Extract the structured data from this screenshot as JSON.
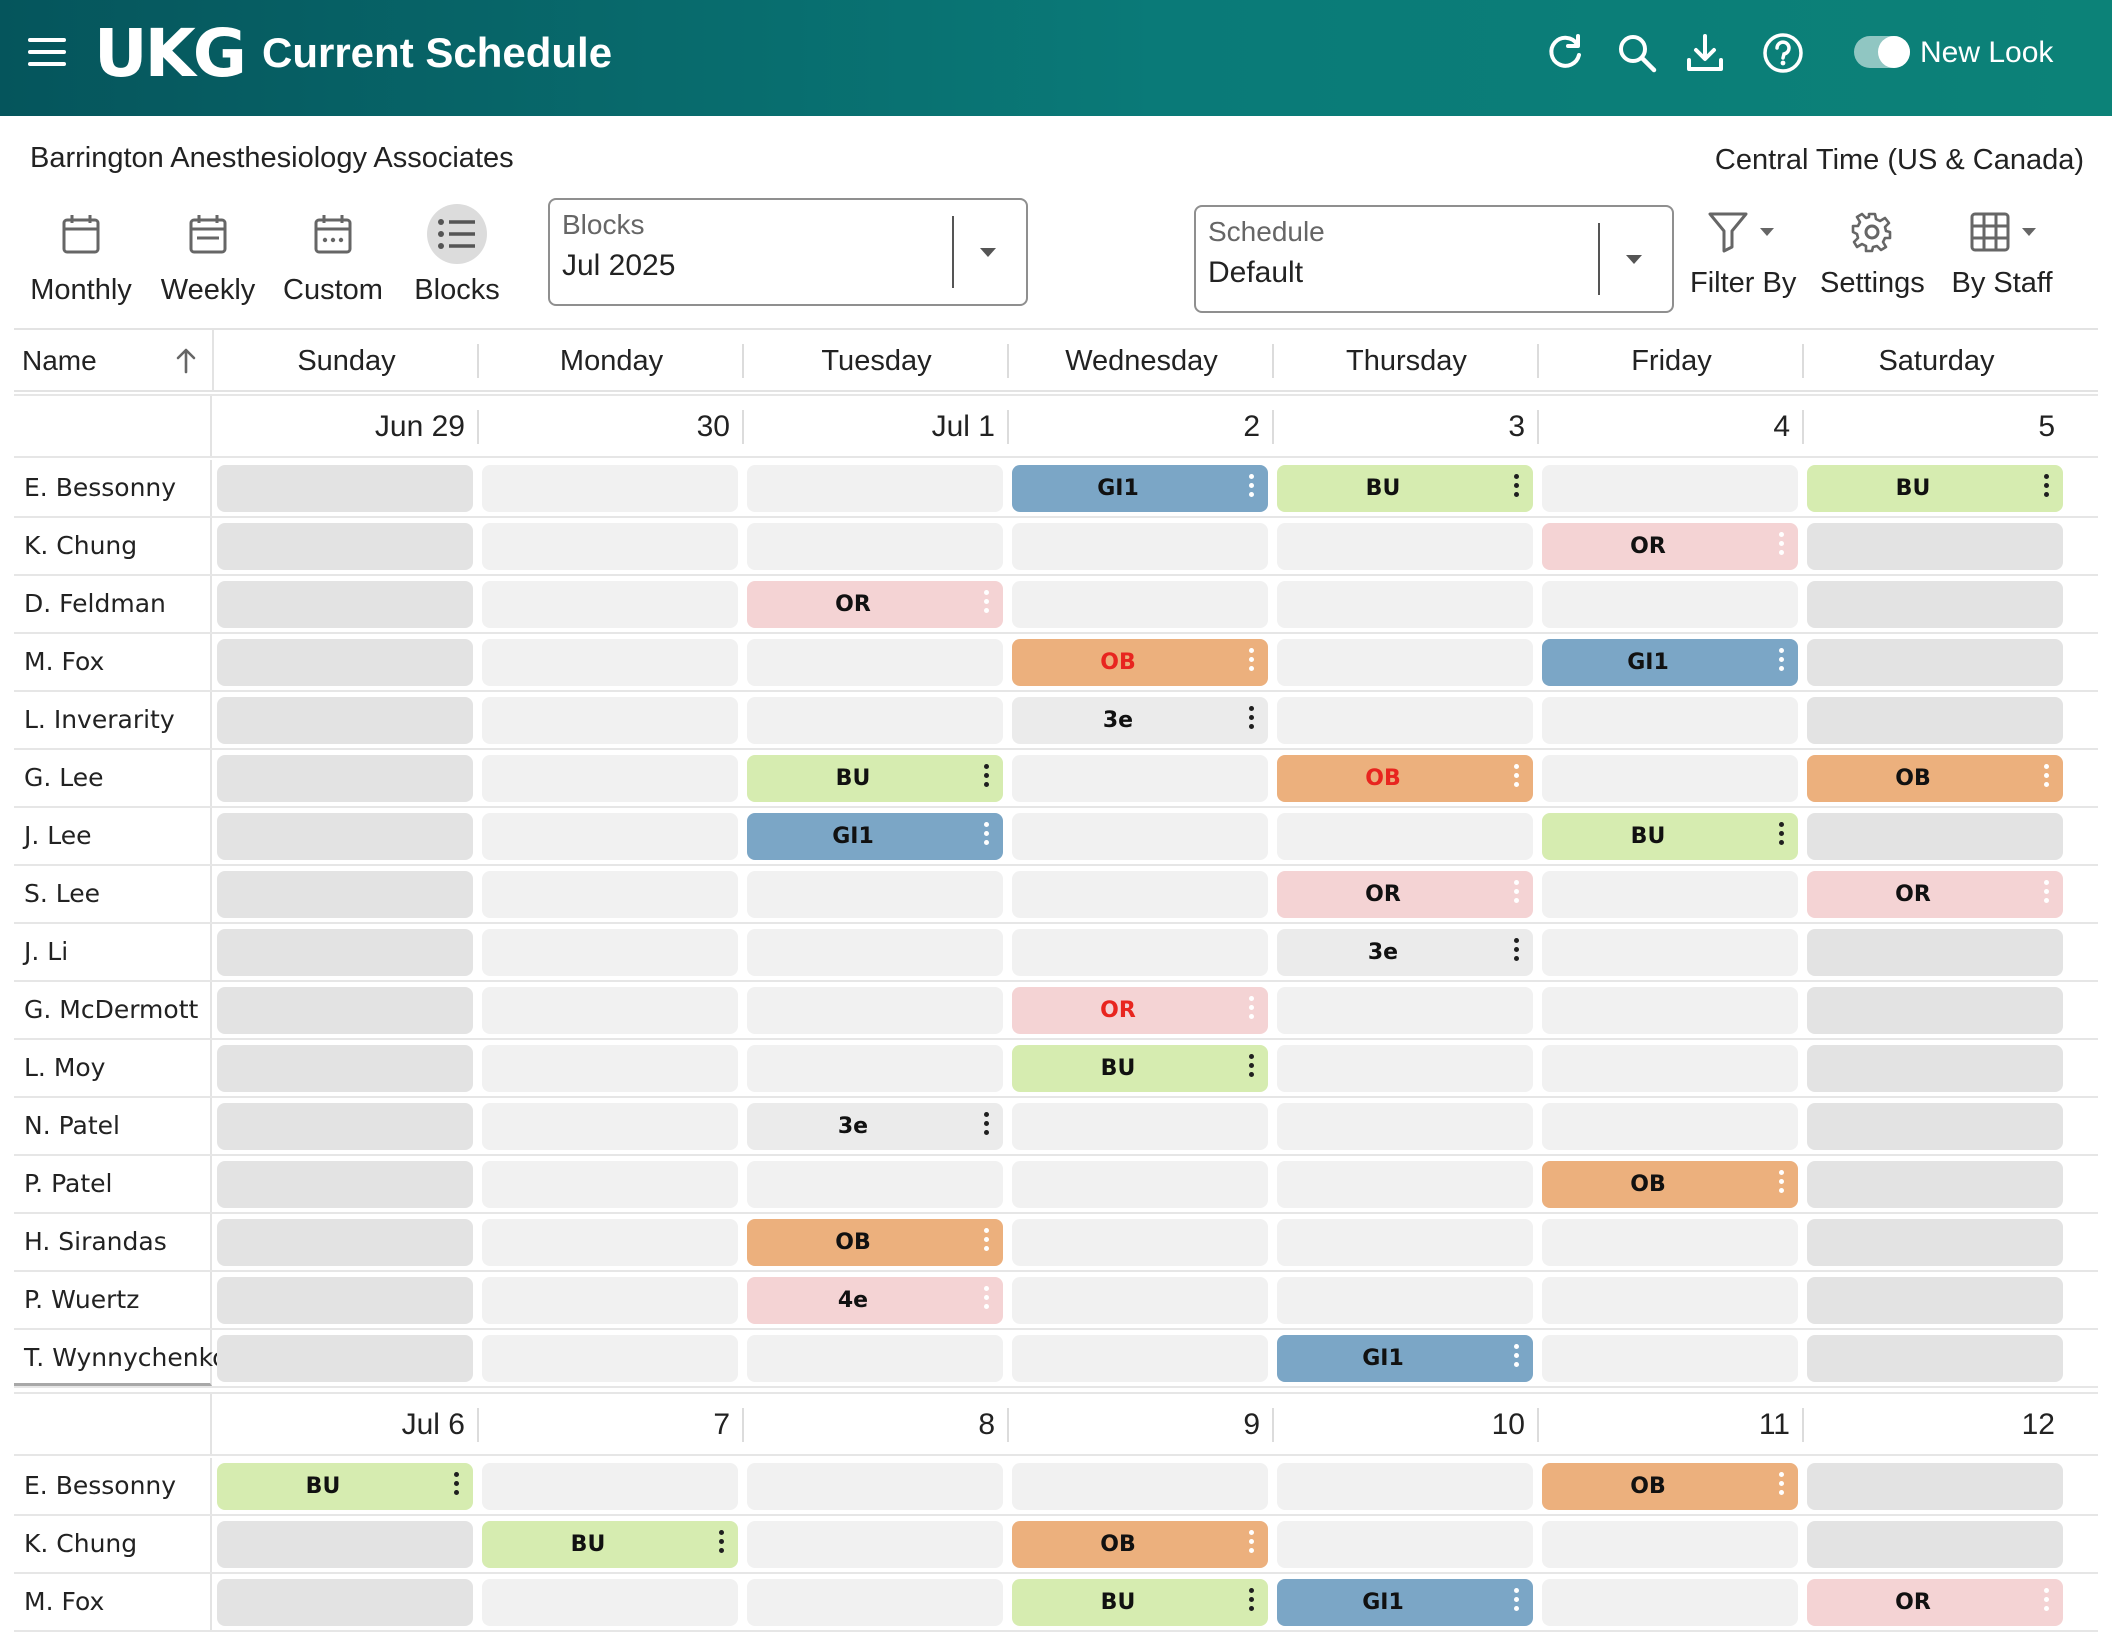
{
  "app": {
    "logo": "UKG",
    "title": "Current Schedule",
    "toggle_label": "New Look"
  },
  "header_icons": [
    "refresh-icon",
    "search-icon",
    "download-icon",
    "help-icon"
  ],
  "org_name": "Barrington Anesthesiology Associates",
  "timezone": "Central Time (US & Canada)",
  "views": [
    {
      "label": "Monthly",
      "icon": "calendar-icon",
      "active": false
    },
    {
      "label": "Weekly",
      "icon": "calendar-week-icon",
      "active": false
    },
    {
      "label": "Custom",
      "icon": "calendar-custom-icon",
      "active": false
    },
    {
      "label": "Blocks",
      "icon": "list-icon",
      "active": true
    }
  ],
  "blocks_select": {
    "label": "Blocks",
    "value": "Jul 2025"
  },
  "schedule_select": {
    "label": "Schedule",
    "value": "Default"
  },
  "tools": {
    "filter": "Filter By",
    "settings": "Settings",
    "by_staff": "By Staff"
  },
  "table": {
    "name_header": "Name",
    "days": [
      "Sunday",
      "Monday",
      "Tuesday",
      "Wednesday",
      "Thursday",
      "Friday",
      "Saturday"
    ]
  },
  "colors": {
    "GI1": "#7ba6c6",
    "BU": "#d6ecb0",
    "OR": "#f4d3d4",
    "OB": "#ecb07d",
    "3e": "#ebebeb",
    "4e": "#f4d3d4",
    "alert_text": "#e8251f",
    "kebab_dark": "#1f1f1f",
    "kebab_light": "#ffffff",
    "header_start": "#05555c",
    "header_end": "#0c8278"
  },
  "weeks": [
    {
      "dates": [
        "Jun 29",
        "30",
        "Jul 1",
        "2",
        "3",
        "4",
        "5"
      ],
      "rows": [
        {
          "name": "E. Bessonny",
          "shifts": [
            "",
            "",
            "",
            "GI1",
            "BU",
            "",
            "BU"
          ]
        },
        {
          "name": "K. Chung",
          "shifts": [
            "",
            "",
            "",
            "",
            "",
            "OR",
            ""
          ]
        },
        {
          "name": "D. Feldman",
          "shifts": [
            "",
            "",
            "OR",
            "",
            "",
            "",
            ""
          ]
        },
        {
          "name": "M. Fox",
          "shifts": [
            "",
            "",
            "",
            "OB!",
            "",
            "GI1",
            ""
          ]
        },
        {
          "name": "L. Inverarity",
          "shifts": [
            "",
            "",
            "",
            "3e",
            "",
            "",
            ""
          ]
        },
        {
          "name": "G. Lee",
          "shifts": [
            "",
            "",
            "BU",
            "",
            "OB!",
            "",
            "OB"
          ]
        },
        {
          "name": "J. Lee",
          "shifts": [
            "",
            "",
            "GI1",
            "",
            "",
            "BU",
            ""
          ]
        },
        {
          "name": "S. Lee",
          "shifts": [
            "",
            "",
            "",
            "",
            "OR",
            "",
            "OR"
          ]
        },
        {
          "name": "J. Li",
          "shifts": [
            "",
            "",
            "",
            "",
            "3e",
            "",
            ""
          ]
        },
        {
          "name": "G. McDermott",
          "shifts": [
            "",
            "",
            "",
            "OR!",
            "",
            "",
            ""
          ]
        },
        {
          "name": "L. Moy",
          "shifts": [
            "",
            "",
            "",
            "BU",
            "",
            "",
            ""
          ]
        },
        {
          "name": "N. Patel",
          "shifts": [
            "",
            "",
            "3e",
            "",
            "",
            "",
            ""
          ]
        },
        {
          "name": "P. Patel",
          "shifts": [
            "",
            "",
            "",
            "",
            "",
            "OB",
            ""
          ]
        },
        {
          "name": "H. Sirandas",
          "shifts": [
            "",
            "",
            "OB",
            "",
            "",
            "",
            ""
          ]
        },
        {
          "name": "P. Wuertz",
          "shifts": [
            "",
            "",
            "4e",
            "",
            "",
            "",
            ""
          ]
        },
        {
          "name": "T. Wynnychenko",
          "shifts": [
            "",
            "",
            "",
            "",
            "GI1",
            "",
            ""
          ]
        }
      ]
    },
    {
      "dates": [
        "Jul 6",
        "7",
        "8",
        "9",
        "10",
        "11",
        "12"
      ],
      "rows": [
        {
          "name": "E. Bessonny",
          "shifts": [
            "BU",
            "",
            "",
            "",
            "",
            "OB",
            ""
          ]
        },
        {
          "name": "K. Chung",
          "shifts": [
            "",
            "BU",
            "",
            "OB",
            "",
            "",
            ""
          ]
        },
        {
          "name": "M. Fox",
          "shifts": [
            "",
            "",
            "",
            "BU",
            "GI1",
            "",
            "OR"
          ]
        }
      ]
    }
  ]
}
